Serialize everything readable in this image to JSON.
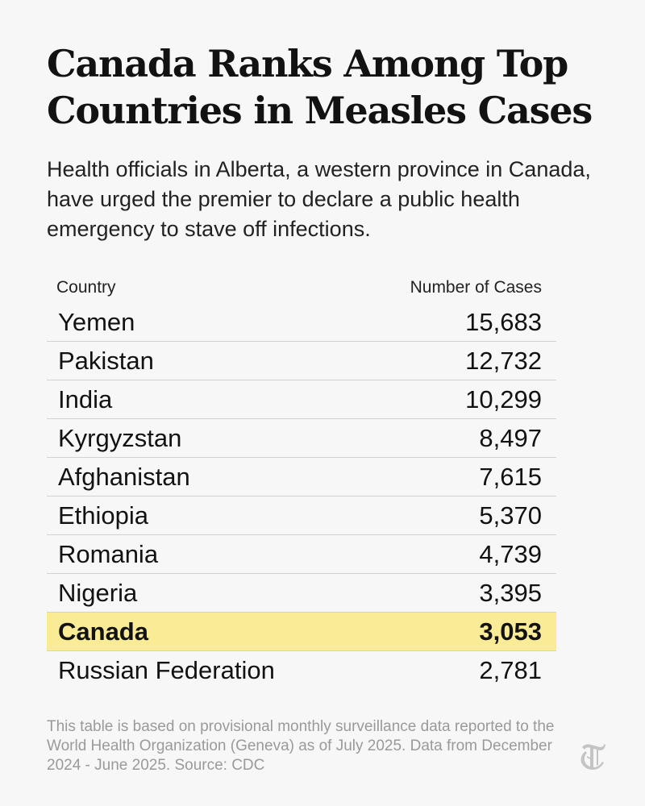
{
  "title": "Canada Ranks Among Top Countries in Measles Cases",
  "subtitle": "Health officials in Alberta, a western province in Canada, have urged the premier to declare a public health emergency to stave off infections.",
  "chart_data": {
    "type": "table",
    "columns": [
      "Country",
      "Number of Cases"
    ],
    "highlight": "Canada",
    "highlight_color": "#faeb96",
    "rows": [
      {
        "country": "Yemen",
        "cases": "15,683"
      },
      {
        "country": "Pakistan",
        "cases": "12,732"
      },
      {
        "country": "India",
        "cases": "10,299"
      },
      {
        "country": "Kyrgyzstan",
        "cases": "8,497"
      },
      {
        "country": "Afghanistan",
        "cases": "7,615"
      },
      {
        "country": "Ethiopia",
        "cases": "5,370"
      },
      {
        "country": "Romania",
        "cases": "4,739"
      },
      {
        "country": "Nigeria",
        "cases": "3,395"
      },
      {
        "country": "Canada",
        "cases": "3,053"
      },
      {
        "country": "Russian Federation",
        "cases": "2,781"
      }
    ]
  },
  "footnote": "This table is based on provisional monthly surveillance data reported to the World Health Organization (Geneva) as of July 2025. Data from December 2024 - June 2025. Source: CDC",
  "logo": {
    "icon": "nyt-t-logo-icon",
    "color": "#c4c4c4"
  }
}
